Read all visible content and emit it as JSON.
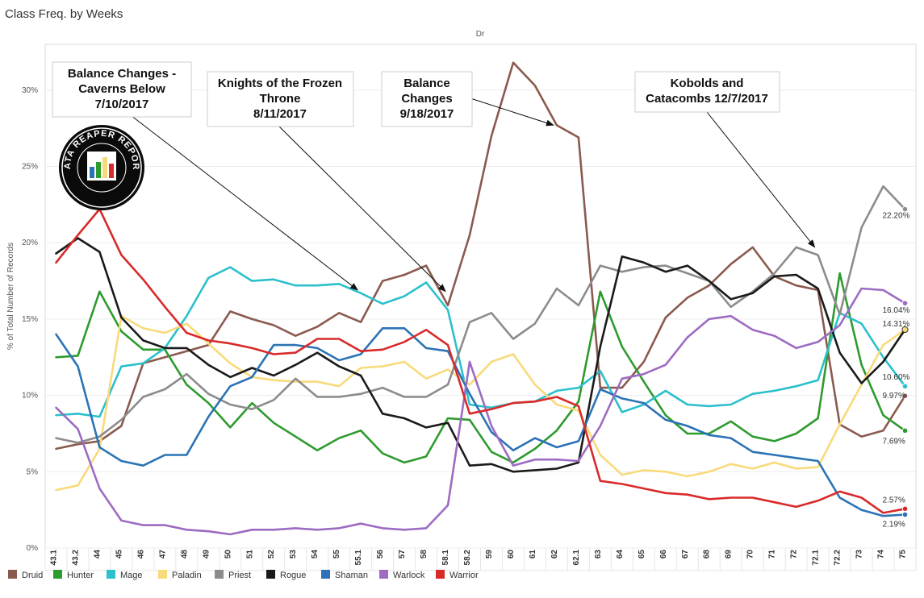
{
  "title": "Class Freq. by Weeks",
  "chart_data": {
    "type": "line",
    "title": "Class Freq. by Weeks",
    "header": "Dr",
    "ylabel": "% of Total Number of Records",
    "xlabel": "",
    "ylim": [
      0,
      33
    ],
    "yticks": [
      0,
      5,
      10,
      15,
      20,
      25,
      30
    ],
    "ytick_labels": [
      "0%",
      "5%",
      "10%",
      "15%",
      "20%",
      "25%",
      "30%"
    ],
    "grid": true,
    "legend_position": "bottom-left",
    "categories": [
      "43.1",
      "43.2",
      "44",
      "45",
      "46",
      "47",
      "48",
      "49",
      "50",
      "51",
      "52",
      "53",
      "54",
      "55",
      "55.1",
      "56",
      "57",
      "58",
      "58.1",
      "58.2",
      "59",
      "60",
      "61",
      "62",
      "62.1",
      "63",
      "64",
      "65",
      "66",
      "67",
      "68",
      "69",
      "70",
      "71",
      "72",
      "72.1",
      "72.2",
      "73",
      "74",
      "75"
    ],
    "series": [
      {
        "name": "Druid",
        "color": "#8B5A4E",
        "values": [
          6.5,
          6.8,
          7.0,
          8.0,
          12.1,
          12.5,
          12.9,
          13.3,
          15.5,
          15.0,
          14.6,
          13.9,
          14.5,
          15.4,
          14.8,
          17.5,
          17.9,
          18.5,
          15.9,
          20.5,
          27.0,
          31.8,
          30.3,
          27.7,
          26.9,
          10.5,
          10.5,
          12.2,
          15.1,
          16.4,
          17.2,
          18.6,
          19.7,
          17.8,
          17.2,
          16.9,
          8.1,
          7.3,
          7.7,
          9.97
        ]
      },
      {
        "name": "Hunter",
        "color": "#2E9B2E",
        "values": [
          12.5,
          12.6,
          16.8,
          14.2,
          13.0,
          13.0,
          10.7,
          9.5,
          7.9,
          9.5,
          8.2,
          7.3,
          6.4,
          7.2,
          7.7,
          6.2,
          5.6,
          6.0,
          8.5,
          8.4,
          6.3,
          5.6,
          6.5,
          7.7,
          9.6,
          16.8,
          13.2,
          10.9,
          8.7,
          7.5,
          7.5,
          8.3,
          7.3,
          7.0,
          7.5,
          8.5,
          18.0,
          12.0,
          8.7,
          7.69
        ]
      },
      {
        "name": "Mage",
        "color": "#2BC0CC",
        "values": [
          8.7,
          8.8,
          8.6,
          11.9,
          12.1,
          13.1,
          15.2,
          17.7,
          18.4,
          17.5,
          17.6,
          17.2,
          17.2,
          17.3,
          16.7,
          16.0,
          16.5,
          17.4,
          15.6,
          9.4,
          9.2,
          9.5,
          9.6,
          10.3,
          10.5,
          11.6,
          8.9,
          9.4,
          10.3,
          9.4,
          9.3,
          9.4,
          10.1,
          10.3,
          10.6,
          11.0,
          15.4,
          14.7,
          12.5,
          10.6
        ]
      },
      {
        "name": "Paladin",
        "color": "#F9DA7A",
        "values": [
          3.8,
          4.1,
          6.5,
          15.2,
          14.4,
          14.1,
          14.7,
          13.4,
          12.1,
          11.2,
          11.0,
          10.9,
          10.9,
          10.6,
          11.8,
          11.9,
          12.2,
          11.1,
          11.7,
          10.7,
          12.2,
          12.7,
          10.7,
          9.4,
          9.0,
          6.1,
          4.8,
          5.1,
          5.0,
          4.7,
          5.0,
          5.5,
          5.2,
          5.6,
          5.2,
          5.3,
          8.1,
          10.7,
          13.3,
          14.31
        ]
      },
      {
        "name": "Priest",
        "color": "#8C8C8C",
        "values": [
          7.2,
          6.9,
          7.3,
          8.4,
          9.9,
          10.4,
          11.4,
          10.1,
          9.4,
          9.1,
          9.7,
          11.1,
          9.9,
          9.9,
          10.1,
          10.5,
          9.9,
          9.9,
          10.7,
          14.8,
          15.4,
          13.7,
          14.7,
          17.0,
          15.9,
          18.5,
          18.1,
          18.4,
          18.5,
          18.0,
          17.5,
          15.8,
          16.8,
          18.0,
          19.7,
          19.2,
          15.3,
          21.0,
          23.7,
          22.2
        ]
      },
      {
        "name": "Rogue",
        "color": "#1A1A1A",
        "values": [
          19.3,
          20.3,
          19.4,
          15.1,
          13.6,
          13.1,
          13.1,
          12.0,
          11.2,
          11.8,
          11.3,
          12.0,
          12.8,
          11.9,
          11.3,
          8.8,
          8.5,
          7.9,
          8.2,
          5.4,
          5.5,
          5.0,
          5.1,
          5.2,
          5.6,
          13.2,
          19.1,
          18.7,
          18.1,
          18.5,
          17.5,
          16.3,
          16.7,
          17.8,
          17.9,
          17.0,
          12.8,
          10.8,
          12.2,
          14.31
        ]
      },
      {
        "name": "Shaman",
        "color": "#2B73B5",
        "values": [
          14.0,
          11.9,
          6.6,
          5.7,
          5.4,
          6.1,
          6.1,
          8.6,
          10.6,
          11.2,
          13.3,
          13.3,
          13.1,
          12.3,
          12.7,
          14.4,
          14.4,
          13.1,
          12.9,
          10.1,
          7.6,
          6.4,
          7.2,
          6.6,
          7.0,
          10.4,
          9.8,
          9.5,
          8.4,
          8.0,
          7.4,
          7.2,
          6.3,
          6.1,
          5.9,
          5.7,
          3.3,
          2.5,
          2.1,
          2.19
        ]
      },
      {
        "name": "Warlock",
        "color": "#9D6BC2",
        "values": [
          9.2,
          7.8,
          3.9,
          1.8,
          1.5,
          1.5,
          1.2,
          1.1,
          0.9,
          1.2,
          1.2,
          1.3,
          1.2,
          1.3,
          1.6,
          1.3,
          1.2,
          1.3,
          2.8,
          12.2,
          8.0,
          5.4,
          5.8,
          5.8,
          5.7,
          8.0,
          11.1,
          11.4,
          12.0,
          13.8,
          15.0,
          15.2,
          14.3,
          13.9,
          13.1,
          13.5,
          14.6,
          17.0,
          16.9,
          16.04
        ]
      },
      {
        "name": "Warrior",
        "color": "#D92A2A",
        "values": [
          18.7,
          20.5,
          22.2,
          19.2,
          17.6,
          15.8,
          14.1,
          13.6,
          13.4,
          13.1,
          12.7,
          12.8,
          13.7,
          13.7,
          12.9,
          13.0,
          13.5,
          14.3,
          13.3,
          8.8,
          9.1,
          9.5,
          9.6,
          9.9,
          9.3,
          4.4,
          4.2,
          3.9,
          3.6,
          3.5,
          3.2,
          3.3,
          3.3,
          3.0,
          2.7,
          3.1,
          3.7,
          3.3,
          2.3,
          2.57
        ]
      }
    ],
    "end_labels": [
      {
        "series": "Priest",
        "text": "22.20%"
      },
      {
        "series": "Warlock",
        "text": "16.04%"
      },
      {
        "series": "Paladin",
        "text": "14.31%"
      },
      {
        "series": "Mage",
        "text": "10.60%"
      },
      {
        "series": "Druid",
        "text": "9.97%"
      },
      {
        "series": "Hunter",
        "text": "7.69%"
      },
      {
        "series": "Warrior",
        "text": "2.57%"
      },
      {
        "series": "Shaman",
        "text": "2.19%"
      }
    ],
    "annotations": [
      {
        "lines": [
          "Balance Changes -",
          "Caverns Below",
          "7/10/2017"
        ],
        "target": "55.1"
      },
      {
        "lines": [
          "Knights of the Frozen",
          "Throne",
          "8/11/2017"
        ],
        "target": "58.1"
      },
      {
        "lines": [
          "Balance",
          "Changes",
          "9/18/2017"
        ],
        "target": "62"
      },
      {
        "lines": [
          "Kobolds and",
          "Catacombs 12/7/2017"
        ],
        "target": "72.1"
      }
    ],
    "logo_text": "DATA REAPER REPORT"
  }
}
